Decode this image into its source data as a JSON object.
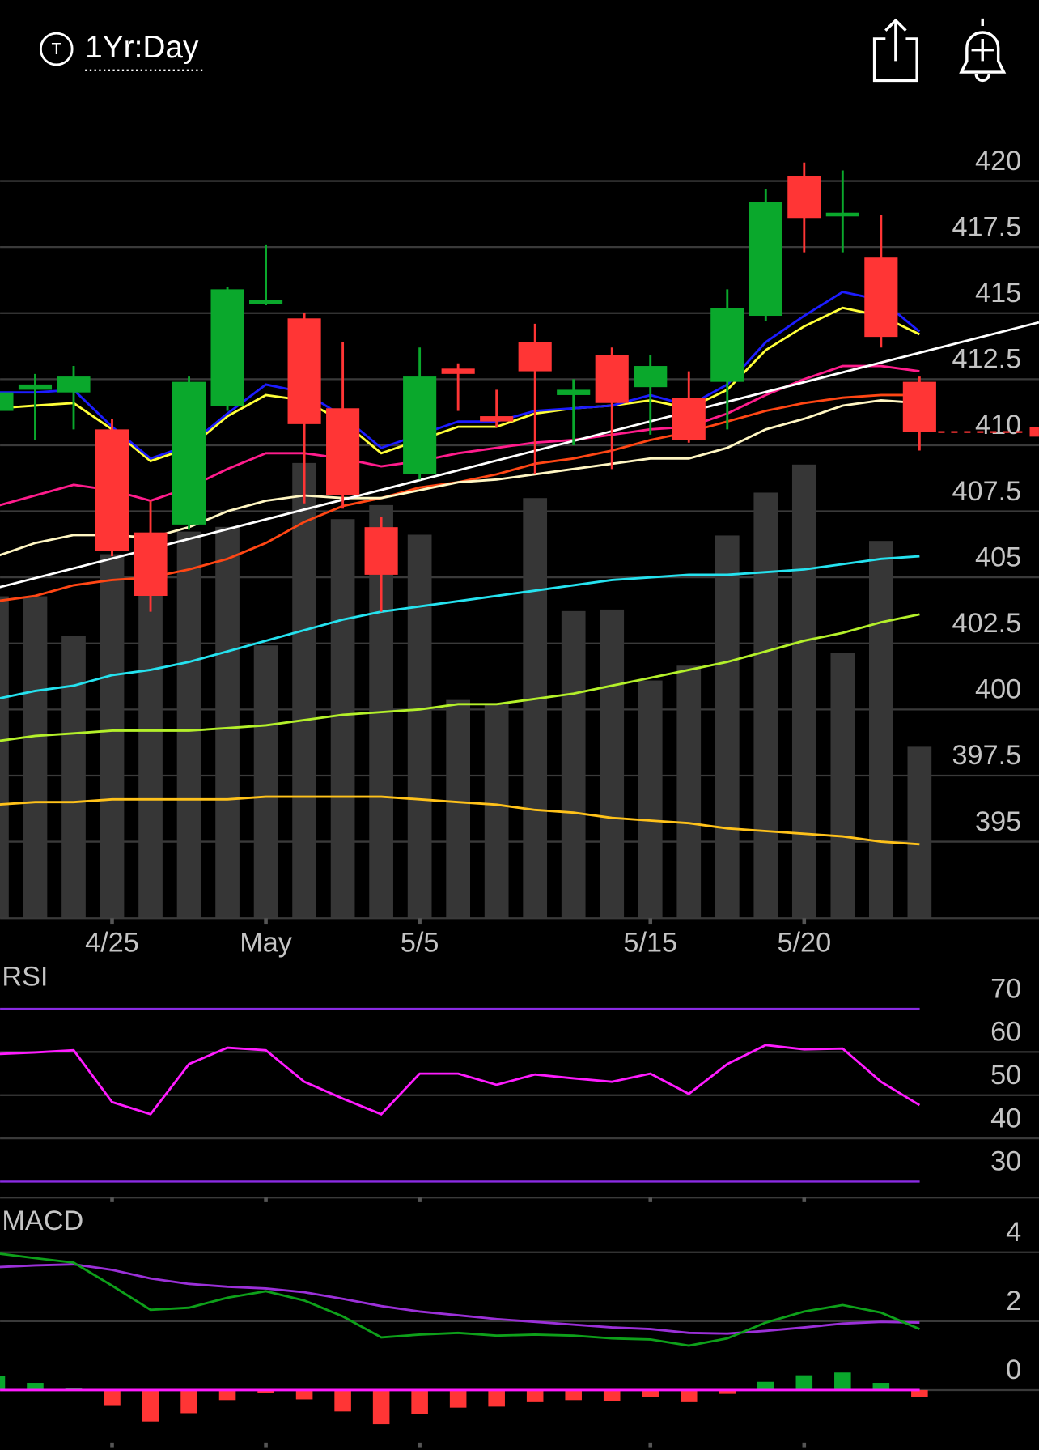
{
  "header": {
    "badge": "T",
    "period": "1Yr:Day"
  },
  "chart_data": [
    {
      "type": "candlestick",
      "categories": [
        null,
        null,
        null,
        "4/25",
        null,
        null,
        null,
        "May",
        null,
        null,
        null,
        "5/5",
        null,
        null,
        null,
        null,
        null,
        "5/15",
        null,
        null,
        null,
        "5/20",
        null,
        null,
        null
      ],
      "open": [
        411.3,
        412.1,
        412.0,
        410.6,
        406.7,
        407.0,
        411.5,
        415.4,
        414.8,
        411.4,
        406.9,
        408.9,
        412.9,
        411.1,
        413.9,
        411.9,
        413.4,
        412.2,
        411.8,
        412.4,
        414.9,
        420.2,
        418.7,
        417.1,
        412.4
      ],
      "high": [
        412.2,
        412.7,
        413.0,
        411.0,
        407.9,
        412.6,
        416.0,
        417.6,
        415.0,
        413.9,
        407.3,
        413.7,
        413.1,
        412.1,
        414.6,
        412.5,
        413.7,
        413.4,
        412.8,
        415.9,
        419.7,
        420.7,
        420.4,
        418.7,
        412.6
      ],
      "low": [
        411.0,
        410.2,
        410.6,
        405.8,
        403.7,
        406.8,
        411.3,
        415.3,
        407.8,
        407.6,
        403.7,
        408.7,
        411.3,
        410.7,
        408.9,
        410.0,
        409.1,
        410.4,
        410.1,
        410.6,
        414.7,
        417.3,
        417.3,
        413.7,
        409.8
      ],
      "close": [
        412.0,
        412.3,
        412.6,
        406.0,
        404.3,
        412.4,
        415.9,
        415.5,
        410.8,
        408.1,
        405.1,
        412.6,
        412.7,
        410.9,
        412.8,
        412.1,
        411.6,
        413.0,
        410.2,
        415.2,
        419.2,
        418.6,
        418.8,
        414.1,
        410.5
      ],
      "up_color": "#0aa82c",
      "down_color": "#ff3535",
      "ylim": [
        392.1,
        421.6
      ],
      "yticks": [
        395,
        397.5,
        400,
        402.5,
        405,
        407.5,
        410,
        412.5,
        415,
        417.5,
        420
      ],
      "grid": true,
      "volume": {
        "color": "#363636",
        "ylim": [
          0,
          100
        ],
        "values": [
          41.3,
          41.3,
          36.2,
          46.7,
          46.7,
          49.6,
          50.2,
          35.0,
          58.4,
          51.2,
          53.0,
          49.2,
          28.0,
          27.6,
          53.9,
          39.4,
          39.6,
          30.5,
          32.4,
          49.1,
          54.6,
          58.2,
          34.0,
          48.4,
          22.0
        ]
      },
      "series": [
        {
          "color": "#ffc21a",
          "values": [
            396.4,
            396.5,
            396.5,
            396.6,
            396.6,
            396.6,
            396.6,
            396.7,
            396.7,
            396.7,
            396.7,
            396.6,
            396.5,
            396.4,
            396.2,
            396.1,
            395.9,
            395.8,
            395.7,
            395.5,
            395.4,
            395.3,
            395.2,
            395.0,
            394.9
          ]
        },
        {
          "color": "#b4f02a",
          "values": [
            398.8,
            399.0,
            399.1,
            399.2,
            399.2,
            399.2,
            399.3,
            399.4,
            399.6,
            399.8,
            399.9,
            400.0,
            400.2,
            400.2,
            400.4,
            400.6,
            400.9,
            401.2,
            401.5,
            401.8,
            402.2,
            402.6,
            402.9,
            403.3,
            403.6
          ]
        },
        {
          "color": "#25e2ef",
          "values": [
            400.4,
            400.7,
            400.9,
            401.3,
            401.5,
            401.8,
            402.2,
            402.6,
            403.0,
            403.4,
            403.7,
            403.9,
            404.1,
            404.3,
            404.5,
            404.7,
            404.9,
            405.0,
            405.1,
            405.1,
            405.2,
            405.3,
            405.5,
            405.7,
            405.8
          ]
        },
        {
          "color": "#ff4614",
          "values": [
            404.1,
            404.3,
            404.7,
            404.9,
            405.0,
            405.3,
            405.7,
            406.3,
            407.1,
            407.7,
            408.0,
            408.4,
            408.6,
            408.9,
            409.3,
            409.5,
            409.8,
            410.2,
            410.5,
            410.9,
            411.3,
            411.6,
            411.8,
            411.9,
            411.9
          ]
        },
        {
          "color": "#fff6c2",
          "values": [
            405.8,
            406.3,
            406.6,
            406.6,
            406.5,
            406.9,
            407.5,
            407.9,
            408.1,
            408.0,
            408.0,
            408.3,
            408.6,
            408.7,
            408.9,
            409.1,
            409.3,
            409.5,
            409.5,
            409.9,
            410.6,
            411.0,
            411.5,
            411.7,
            411.6
          ]
        },
        {
          "color": "#ff1c8c",
          "values": [
            407.7,
            408.1,
            408.5,
            408.3,
            407.9,
            408.4,
            409.1,
            409.7,
            409.7,
            409.5,
            409.2,
            409.4,
            409.7,
            409.9,
            410.1,
            410.2,
            410.4,
            410.6,
            410.7,
            411.2,
            411.9,
            412.5,
            413.0,
            413.0,
            412.8
          ]
        },
        {
          "color": "#ffff38",
          "values": [
            411.4,
            411.5,
            411.6,
            410.6,
            409.4,
            409.9,
            411.1,
            411.9,
            411.7,
            410.9,
            409.7,
            410.2,
            410.7,
            410.7,
            411.2,
            411.4,
            411.5,
            411.7,
            411.4,
            412.1,
            413.6,
            414.5,
            415.2,
            414.9,
            414.2
          ]
        },
        {
          "color": "#1c1cff",
          "values": [
            412.0,
            412.0,
            412.1,
            410.7,
            409.5,
            410.0,
            411.2,
            412.3,
            412.0,
            411.1,
            409.9,
            410.4,
            410.9,
            410.9,
            411.3,
            411.4,
            411.5,
            411.9,
            411.5,
            412.3,
            413.9,
            414.9,
            415.8,
            415.5,
            414.3
          ]
        }
      ],
      "trendline": {
        "color": "#ffffff",
        "start_index": 0,
        "start": 404.6,
        "end_index": 24,
        "end": 413.5
      },
      "last_price": 410.5,
      "last_price_color": "#ff3535"
    },
    {
      "type": "line",
      "title": "RSI",
      "color": "#ff1cff",
      "values": [
        59.5,
        59.9,
        60.4,
        48.4,
        45.6,
        57.2,
        61.0,
        60.4,
        53.1,
        49.2,
        45.6,
        55.0,
        55.0,
        52.4,
        54.8,
        53.9,
        53.1,
        55.0,
        50.3,
        57.2,
        61.6,
        60.6,
        60.8,
        53.1,
        47.7
      ],
      "ylim": [
        26.3,
        80.9
      ],
      "yticks": [
        30,
        40,
        50,
        60,
        70
      ],
      "grid": true,
      "band": [
        30,
        70
      ],
      "band_color": "#8a2be2"
    },
    {
      "type": "macd",
      "title": "MACD",
      "macd": {
        "color": "#0ea01a",
        "values": [
          3.97,
          3.83,
          3.7,
          3.03,
          2.33,
          2.39,
          2.68,
          2.87,
          2.6,
          2.14,
          1.53,
          1.61,
          1.66,
          1.58,
          1.61,
          1.58,
          1.5,
          1.47,
          1.29,
          1.5,
          1.96,
          2.28,
          2.47,
          2.25,
          1.77
        ]
      },
      "signal": {
        "color": "#9b30d8",
        "values": [
          3.57,
          3.62,
          3.65,
          3.49,
          3.24,
          3.08,
          3.0,
          2.95,
          2.84,
          2.65,
          2.44,
          2.28,
          2.17,
          2.06,
          1.98,
          1.9,
          1.82,
          1.77,
          1.66,
          1.64,
          1.72,
          1.82,
          1.93,
          1.98,
          1.96
        ]
      },
      "histogram": {
        "up_color": "#0aa82c",
        "down_color": "#ff3535",
        "values": [
          0.4,
          0.21,
          0.05,
          -0.46,
          -0.91,
          -0.67,
          -0.29,
          -0.08,
          -0.27,
          -0.62,
          -0.99,
          -0.7,
          -0.51,
          -0.48,
          -0.35,
          -0.29,
          -0.32,
          -0.21,
          -0.35,
          -0.11,
          0.24,
          0.43,
          0.51,
          0.21,
          -0.19
        ]
      },
      "ylim": [
        -1.74,
        5.32
      ],
      "yticks": [
        0,
        2,
        4
      ],
      "grid": true,
      "zero_color": "#ff1cff"
    }
  ]
}
